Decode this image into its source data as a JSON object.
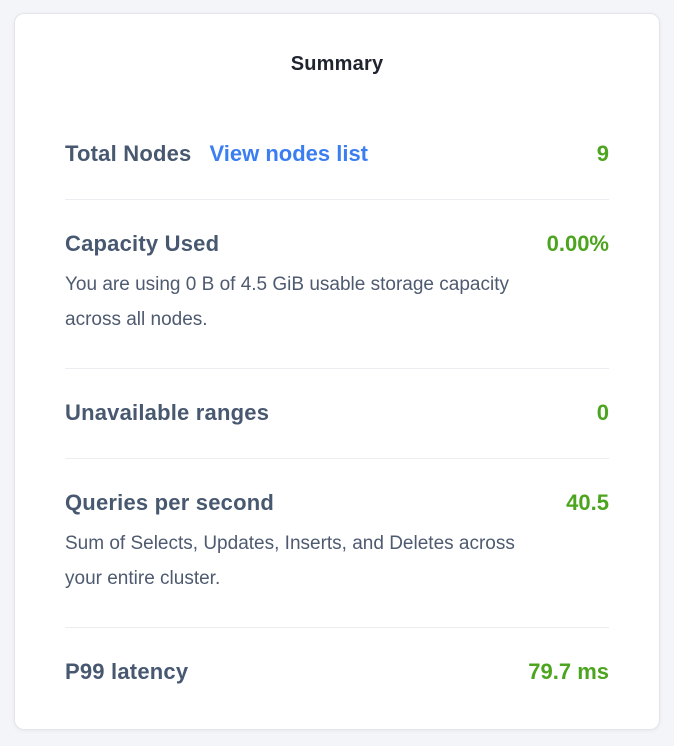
{
  "card": {
    "title": "Summary",
    "rows": [
      {
        "label": "Total Nodes",
        "link": "View nodes list",
        "value": "9"
      },
      {
        "label": "Capacity Used",
        "value": "0.00%",
        "description": "You are using 0 B of 4.5 GiB usable storage capacity across all nodes."
      },
      {
        "label": "Unavailable ranges",
        "value": "0"
      },
      {
        "label": "Queries per second",
        "value": "40.5",
        "description": "Sum of Selects, Updates, Inserts, and Deletes across your entire cluster."
      },
      {
        "label": "P99 latency",
        "value": "79.7 ms"
      }
    ],
    "colors": {
      "value_green": "#4ca41f",
      "link_blue": "#3b7ef2",
      "heading_slate": "#475870",
      "title_dark": "#20242e",
      "description_gray": "#4e5a70",
      "divider": "#ebedf0",
      "card_background": "#ffffff",
      "page_background": "#f4f5f9"
    }
  }
}
